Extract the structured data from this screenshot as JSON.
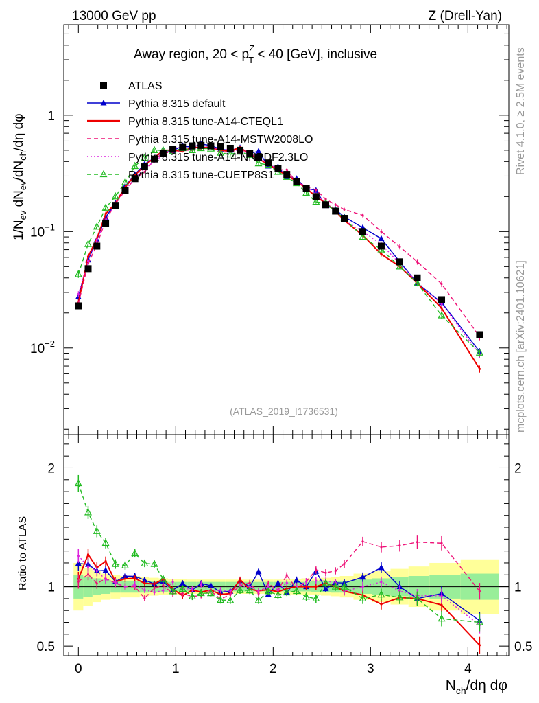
{
  "header": {
    "left": "13000 GeV pp",
    "right": "Z (Drell-Yan)"
  },
  "side": {
    "rivet": "Rivet 4.1.0, ≥ 2.5M events",
    "site": "mcplots.cern.ch [arXiv:2401.10621]"
  },
  "chart_data": {
    "type": "line",
    "title": "Away region, 20 < p_T^Z < 40 [GeV], inclusive",
    "title_parts": {
      "pre": "Away region, 20 < p",
      "sup": "Z",
      "sub": "T",
      "post": " < 40 [GeV], inclusive"
    },
    "analysis_tag": "(ATLAS_2019_I1736531)",
    "xlabel": "N_ch/dη dφ",
    "xlabel_parts": {
      "n": "N",
      "sub": "ch",
      "rest": "/dη dφ"
    },
    "ylabel": "1/N_ev dN_ev/dN_ch/dη dφ",
    "ylabel_parts": {
      "a": "1/N",
      "a_sub": "ev",
      "b": " dN",
      "b_sub": "ev",
      "c": "/dN",
      "c_sub": "ch",
      "d": "/dη dφ"
    },
    "ratio_ylabel": "Ratio to ATLAS",
    "xlim": [
      -0.15,
      4.42
    ],
    "ylim": [
      0.0018,
      6.0
    ],
    "ratio_ylim": [
      0.42,
      2.28
    ],
    "yscale": "log",
    "x_ticks": [
      0,
      1,
      2,
      3,
      4
    ],
    "x_tick_labels": [
      "0",
      "1",
      "2",
      "3",
      "4"
    ],
    "y_tick_labels": [
      {
        "v": 1,
        "base": "1",
        "exp": ""
      },
      {
        "v": 0.1,
        "base": "10",
        "exp": "−1"
      },
      {
        "v": 0.01,
        "base": "10",
        "exp": "−2"
      }
    ],
    "ratio_ticks": [
      0.5,
      1,
      2
    ],
    "ratio_tick_labels": [
      "0.5",
      "1",
      "2"
    ],
    "x": [
      0.0,
      0.1,
      0.19,
      0.28,
      0.38,
      0.48,
      0.58,
      0.68,
      0.78,
      0.87,
      0.97,
      1.07,
      1.17,
      1.26,
      1.36,
      1.46,
      1.56,
      1.66,
      1.76,
      1.85,
      1.95,
      2.05,
      2.14,
      2.24,
      2.34,
      2.44,
      2.54,
      2.64,
      2.73,
      2.92,
      3.11,
      3.3,
      3.48,
      3.73,
      4.12
    ],
    "legend": "top-left",
    "series": [
      {
        "name": "ATLAS",
        "color": "#000000",
        "style": "marker",
        "values": [
          0.023,
          0.048,
          0.075,
          0.117,
          0.168,
          0.225,
          0.285,
          0.36,
          0.42,
          0.47,
          0.51,
          0.53,
          0.545,
          0.55,
          0.545,
          0.535,
          0.52,
          0.5,
          0.47,
          0.435,
          0.39,
          0.35,
          0.31,
          0.27,
          0.235,
          0.2,
          0.17,
          0.15,
          0.13,
          0.1,
          0.075,
          0.055,
          0.04,
          0.026,
          0.013
        ],
        "band_inner": [
          0.1,
          0.085,
          0.07,
          0.06,
          0.05,
          0.05,
          0.05,
          0.05,
          0.045,
          0.045,
          0.04,
          0.04,
          0.04,
          0.04,
          0.04,
          0.04,
          0.04,
          0.04,
          0.04,
          0.04,
          0.04,
          0.04,
          0.04,
          0.04,
          0.04,
          0.045,
          0.045,
          0.05,
          0.05,
          0.06,
          0.07,
          0.08,
          0.09,
          0.1,
          0.11
        ],
        "band_outer": [
          0.2,
          0.16,
          0.13,
          0.11,
          0.1,
          0.09,
          0.09,
          0.08,
          0.075,
          0.07,
          0.065,
          0.065,
          0.06,
          0.06,
          0.06,
          0.06,
          0.06,
          0.06,
          0.06,
          0.06,
          0.06,
          0.06,
          0.065,
          0.065,
          0.07,
          0.07,
          0.075,
          0.08,
          0.09,
          0.11,
          0.13,
          0.15,
          0.17,
          0.2,
          0.23
        ]
      },
      {
        "name": "Pythia 8.315 default",
        "color": "#0000cc",
        "style": "solid",
        "marker": "triangle",
        "values": [
          0.0275,
          0.057,
          0.085,
          0.133,
          0.175,
          0.245,
          0.31,
          0.38,
          0.43,
          0.49,
          0.495,
          0.545,
          0.53,
          0.565,
          0.55,
          0.51,
          0.5,
          0.525,
          0.47,
          0.49,
          0.365,
          0.36,
          0.295,
          0.285,
          0.235,
          0.226,
          0.167,
          0.155,
          0.134,
          0.108,
          0.087,
          0.055,
          0.036,
          0.0245,
          0.0093
        ],
        "ratio_err": [
          0.06,
          0.05,
          0.045,
          0.04,
          0.035,
          0.03,
          0.03,
          0.025,
          0.025,
          0.025,
          0.025,
          0.025,
          0.025,
          0.025,
          0.025,
          0.025,
          0.025,
          0.025,
          0.025,
          0.025,
          0.025,
          0.025,
          0.025,
          0.03,
          0.03,
          0.03,
          0.03,
          0.03,
          0.035,
          0.04,
          0.045,
          0.05,
          0.055,
          0.06,
          0.07
        ]
      },
      {
        "name": "Pythia 8.315 tune-A14-CTEQL1",
        "color": "#ee0000",
        "style": "solid",
        "values": [
          0.0245,
          0.061,
          0.087,
          0.142,
          0.175,
          0.24,
          0.305,
          0.37,
          0.43,
          0.5,
          0.5,
          0.49,
          0.53,
          0.525,
          0.53,
          0.5,
          0.49,
          0.53,
          0.46,
          0.42,
          0.38,
          0.335,
          0.305,
          0.27,
          0.235,
          0.2,
          0.175,
          0.15,
          0.125,
          0.093,
          0.064,
          0.05,
          0.036,
          0.022,
          0.0066
        ],
        "ratio_err": [
          0.06,
          0.05,
          0.045,
          0.04,
          0.035,
          0.03,
          0.03,
          0.025,
          0.025,
          0.025,
          0.025,
          0.025,
          0.025,
          0.025,
          0.025,
          0.025,
          0.025,
          0.025,
          0.025,
          0.025,
          0.025,
          0.025,
          0.025,
          0.03,
          0.03,
          0.03,
          0.03,
          0.03,
          0.035,
          0.04,
          0.045,
          0.05,
          0.055,
          0.06,
          0.07
        ]
      },
      {
        "name": "Pythia 8.315 tune-A14-MSTW2008LO",
        "color": "#ee1177",
        "style": "dashed",
        "values": [
          0.024,
          0.053,
          0.077,
          0.125,
          0.173,
          0.225,
          0.285,
          0.325,
          0.415,
          0.475,
          0.48,
          0.5,
          0.5,
          0.51,
          0.525,
          0.48,
          0.485,
          0.505,
          0.485,
          0.41,
          0.4,
          0.34,
          0.34,
          0.265,
          0.245,
          0.228,
          0.19,
          0.17,
          0.155,
          0.138,
          0.1,
          0.074,
          0.055,
          0.0355,
          0.0125
        ],
        "ratio_err": [
          0.06,
          0.05,
          0.045,
          0.04,
          0.035,
          0.03,
          0.03,
          0.025,
          0.025,
          0.025,
          0.025,
          0.025,
          0.025,
          0.025,
          0.025,
          0.025,
          0.025,
          0.025,
          0.025,
          0.025,
          0.025,
          0.025,
          0.025,
          0.03,
          0.03,
          0.03,
          0.03,
          0.03,
          0.035,
          0.04,
          0.045,
          0.05,
          0.055,
          0.06,
          0.07
        ]
      },
      {
        "name": "Pythia 8.315 tune-A14-NNPDF2.3LO",
        "color": "#dd22dd",
        "style": "dotted",
        "values": [
          0.029,
          0.056,
          0.085,
          0.124,
          0.174,
          0.225,
          0.29,
          0.35,
          0.4,
          0.455,
          0.53,
          0.52,
          0.535,
          0.56,
          0.52,
          0.52,
          0.5,
          0.5,
          0.47,
          0.42,
          0.39,
          0.34,
          0.32,
          0.27,
          0.245,
          0.21,
          0.178,
          0.155,
          0.125,
          0.1,
          0.078,
          0.053,
          0.037,
          0.024,
          0.0088
        ],
        "ratio_err": [
          0.06,
          0.05,
          0.045,
          0.04,
          0.035,
          0.03,
          0.03,
          0.025,
          0.025,
          0.025,
          0.025,
          0.025,
          0.025,
          0.025,
          0.025,
          0.025,
          0.025,
          0.025,
          0.025,
          0.025,
          0.025,
          0.025,
          0.025,
          0.03,
          0.03,
          0.03,
          0.03,
          0.03,
          0.035,
          0.04,
          0.045,
          0.05,
          0.055,
          0.06,
          0.07
        ]
      },
      {
        "name": "Pythia 8.315 tune-CUETP8S1",
        "color": "#22bb22",
        "style": "dashed",
        "marker": "open-triangle",
        "values": [
          0.043,
          0.078,
          0.11,
          0.16,
          0.2,
          0.265,
          0.365,
          0.43,
          0.5,
          0.5,
          0.49,
          0.52,
          0.5,
          0.52,
          0.515,
          0.475,
          0.46,
          0.485,
          0.455,
          0.385,
          0.375,
          0.325,
          0.295,
          0.26,
          0.215,
          0.18,
          0.175,
          0.15,
          0.13,
          0.09,
          0.07,
          0.05,
          0.036,
          0.019,
          0.0091
        ],
        "ratio_err": [
          0.07,
          0.055,
          0.05,
          0.045,
          0.04,
          0.035,
          0.035,
          0.03,
          0.03,
          0.03,
          0.03,
          0.03,
          0.03,
          0.03,
          0.03,
          0.03,
          0.03,
          0.03,
          0.03,
          0.03,
          0.03,
          0.03,
          0.03,
          0.035,
          0.035,
          0.035,
          0.035,
          0.035,
          0.04,
          0.045,
          0.05,
          0.055,
          0.06,
          0.065,
          0.075
        ]
      }
    ]
  }
}
